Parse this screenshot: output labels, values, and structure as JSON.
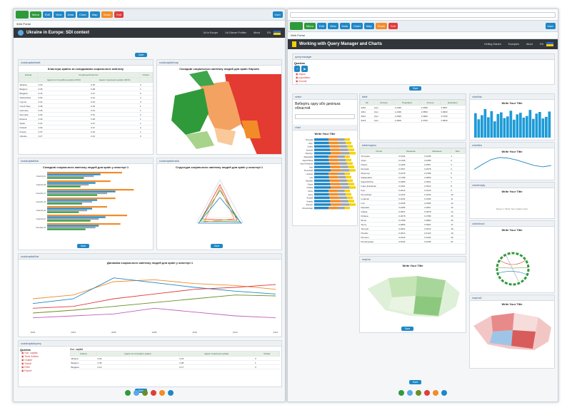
{
  "left": {
    "app_label": "Web Portal",
    "title": "Ukraine in Europe: SDI context",
    "nav": [
      "UA in Europe",
      "UA Obnum Profiles",
      "About",
      "EN"
    ],
    "table_panel": {
      "title": "Кластери країни за складовими соціального капіталу",
      "columns": [
        "Країна",
        "Індекс інституційної довіри (2014)",
        "Індекс соціальної довіри (2014)",
        "Cluster"
      ],
      "group_header": "Соціальний капітал",
      "rows": [
        [
          "Albania",
          "0.29",
          "0.15",
          "3"
        ],
        [
          "Belgium",
          "0.45",
          "0.28",
          "1"
        ],
        [
          "Bulgaria",
          "0.16",
          "0.17",
          "3"
        ],
        [
          "Switzerland",
          "0.63",
          "0.41",
          "2"
        ],
        [
          "Cyprus",
          "0.31",
          "0.16",
          "3"
        ],
        [
          "Czech Rep.",
          "0.28",
          "0.23",
          "1"
        ],
        [
          "Germany",
          "0.46",
          "0.31",
          "1"
        ],
        [
          "Denmark",
          "0.63",
          "0.51",
          "2"
        ],
        [
          "Estonia",
          "0.40",
          "0.29",
          "1"
        ],
        [
          "Spain",
          "0.31",
          "0.27",
          "1"
        ],
        [
          "Finland",
          "0.60",
          "0.47",
          "2"
        ],
        [
          "France",
          "0.37",
          "0.24",
          "1"
        ],
        [
          "Ukraine",
          "0.17",
          "0.21",
          "3"
        ]
      ]
    },
    "map_panel": {
      "title": "Складові соціального капіталу людей для країн Європи"
    },
    "bar_panel": {
      "title": "Складові соціального капіталу людей для країн у кластері 1"
    },
    "radar_panel": {
      "title": "Структура соціального капіталу людей для країн у кластері 1"
    },
    "line_panel": {
      "title": "Динаміка соціального капіталу людей для країн у кластері 1"
    },
    "query_panel": {
      "title": "Queries",
      "items": [
        "Soc. capital",
        "Trust indices",
        "Cluster",
        "Social",
        "Filter",
        "Export"
      ],
      "table_title": "Soc. capital",
      "columns": [
        "Країна",
        "Індекс інституційної довіри",
        "Індекс соціальної довіри",
        "Cluster"
      ],
      "rows": [
        [
          "Albania",
          "0.29",
          "0.15",
          "3"
        ],
        [
          "Belgium",
          "0.45",
          "0.28",
          "1"
        ],
        [
          "Bulgaria",
          "0.16",
          "0.17",
          "3"
        ]
      ]
    },
    "button_label": "Save"
  },
  "right": {
    "app_label": "Web Portal",
    "title": "Working with Query Manager and Charts",
    "nav": [
      "Getting Started",
      "Examples",
      "About",
      "EN"
    ],
    "queries": {
      "title": "Queries",
      "items": [
        "region",
        "population",
        "income",
        "education",
        "health"
      ]
    },
    "select_panel": {
      "label": "Виберіть одну або декілька областей"
    },
    "chart_title": "Write Your Title",
    "chart_subtitle": "Write Your Subtitle",
    "figure_caption": "Figure 1: Write Your Caption here",
    "small_table": {
      "columns": [
        "Рік",
        "Регіони",
        "Population",
        "Income",
        "Education"
      ],
      "rows": [
        [
          "2010",
          "Kyiv",
          "1.2345",
          "2.3456",
          "3.4567"
        ],
        [
          "2011",
          "Kyiv",
          "1.2400",
          "2.3500",
          "3.4600"
        ],
        [
          "2012",
          "Kyiv",
          "1.2500",
          "2.3600",
          "3.4700"
        ],
        [
          "2013",
          "Kyiv",
          "1.2600",
          "2.3700",
          "3.4800"
        ]
      ]
    },
    "long_table": {
      "columns": [
        "Регіон",
        "Показник",
        "Значення",
        "Ранг"
      ],
      "rows": [
        [
          "Vinnytsia",
          "0.1234",
          "0.2345",
          "1"
        ],
        [
          "Volyn",
          "0.1345",
          "0.2456",
          "2"
        ],
        [
          "Dnipro",
          "0.1456",
          "0.2567",
          "3"
        ],
        [
          "Donetsk",
          "0.1567",
          "0.2678",
          "4"
        ],
        [
          "Zhytomyr",
          "0.1678",
          "0.2789",
          "5"
        ],
        [
          "Zakarpattia",
          "0.1789",
          "0.2890",
          "6"
        ],
        [
          "Zaporizhzhia",
          "0.1890",
          "0.2901",
          "7"
        ],
        [
          "Ivano-Frankivsk",
          "0.1901",
          "0.3012",
          "8"
        ],
        [
          "Kyiv",
          "0.2012",
          "0.3123",
          "9"
        ],
        [
          "Kirovohrad",
          "0.2123",
          "0.3234",
          "10"
        ],
        [
          "Luhansk",
          "0.2234",
          "0.3345",
          "11"
        ],
        [
          "Lviv",
          "0.2345",
          "0.3456",
          "12"
        ],
        [
          "Mykolaiv",
          "0.2456",
          "0.3567",
          "13"
        ],
        [
          "Odesa",
          "0.2567",
          "0.3678",
          "14"
        ],
        [
          "Poltava",
          "0.2678",
          "0.3789",
          "15"
        ],
        [
          "Rivne",
          "0.2789",
          "0.3890",
          "16"
        ],
        [
          "Sumy",
          "0.2890",
          "0.3901",
          "17"
        ],
        [
          "Ternopil",
          "0.2901",
          "0.4012",
          "18"
        ],
        [
          "Kharkiv",
          "0.3012",
          "0.4123",
          "19"
        ],
        [
          "Kherson",
          "0.3123",
          "0.4234",
          "20"
        ],
        [
          "Khmelnytskyi",
          "0.3234",
          "0.4345",
          "21"
        ]
      ]
    },
    "button_label": "Save"
  },
  "colors": {
    "green": "#2f9a3a",
    "blue": "#1f87c6",
    "orange": "#f28c28",
    "red": "#e03c3c",
    "dark": "#32363b",
    "bar_blue": "#1e9bd7"
  },
  "chart_data": [
    {
      "type": "bar",
      "orientation": "horizontal",
      "categories": [
        "Country A",
        "Country B",
        "Country C",
        "Country D",
        "Country E",
        "Country F",
        "Country G"
      ],
      "series": [
        {
          "values": [
            0.45,
            0.38,
            0.52,
            0.41,
            0.36,
            0.48,
            0.44
          ]
        },
        {
          "values": [
            0.32,
            0.29,
            0.41,
            0.3,
            0.27,
            0.35,
            0.31
          ]
        },
        {
          "values": [
            0.28,
            0.25,
            0.36,
            0.27,
            0.24,
            0.31,
            0.29
          ]
        },
        {
          "values": [
            0.22,
            0.2,
            0.3,
            0.21,
            0.19,
            0.26,
            0.23
          ]
        }
      ]
    },
    {
      "type": "line",
      "x": [
        "2002",
        "2004",
        "2006",
        "2008",
        "2010",
        "2012",
        "2014"
      ],
      "series": [
        {
          "values": [
            0.3,
            0.34,
            0.48,
            0.5,
            0.46,
            0.44,
            0.4
          ]
        },
        {
          "values": [
            0.25,
            0.3,
            0.52,
            0.47,
            0.42,
            0.38,
            0.35
          ]
        },
        {
          "values": [
            0.2,
            0.22,
            0.3,
            0.35,
            0.4,
            0.42,
            0.45
          ]
        },
        {
          "values": [
            0.15,
            0.18,
            0.22,
            0.26,
            0.3,
            0.34,
            0.33
          ]
        },
        {
          "values": [
            0.1,
            0.12,
            0.14,
            0.2,
            0.16,
            0.12,
            0.1
          ]
        }
      ]
    },
    {
      "type": "bar",
      "categories": [
        "1",
        "2",
        "3",
        "4",
        "5",
        "6",
        "7",
        "8",
        "9",
        "10",
        "11",
        "12",
        "13",
        "14",
        "15",
        "16",
        "17",
        "18",
        "19",
        "20",
        "21",
        "22",
        "23",
        "24"
      ],
      "values": [
        60,
        45,
        55,
        70,
        50,
        65,
        40,
        58,
        62,
        48,
        52,
        66,
        44,
        57,
        61,
        49,
        53,
        68,
        46,
        59,
        63,
        47,
        51,
        64
      ]
    },
    {
      "type": "line",
      "x": [
        "1",
        "2",
        "3",
        "4",
        "5",
        "6",
        "7",
        "8",
        "9",
        "10"
      ],
      "values": [
        40,
        48,
        55,
        58,
        57,
        54,
        50,
        46,
        44,
        46
      ]
    }
  ]
}
